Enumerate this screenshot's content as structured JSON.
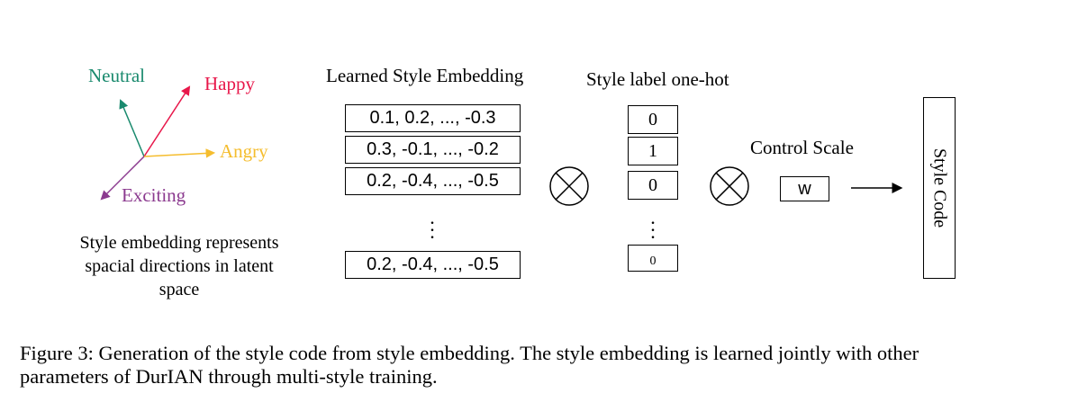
{
  "vectors": {
    "neutral": {
      "label": "Neutral",
      "color": "#1a8a6e"
    },
    "happy": {
      "label": "Happy",
      "color": "#e8174a"
    },
    "angry": {
      "label": "Angry",
      "color": "#f5bd2e"
    },
    "exciting": {
      "label": "Exciting",
      "color": "#8b3a8f"
    }
  },
  "vector_caption": [
    "Style embedding represents",
    "spacial directions in latent",
    "space"
  ],
  "embedding": {
    "title": "Learned Style Embedding",
    "rows": [
      "0.1, 0.2, ..., -0.3",
      "0.3, -0.1, ..., -0.2",
      "0.2, -0.4, ..., -0.5"
    ],
    "last_row": "0.2, -0.4, ..., -0.5"
  },
  "onehot": {
    "title": "Style label one-hot",
    "values": [
      "0",
      "1",
      "0"
    ],
    "last_value": "0"
  },
  "control": {
    "title": "Control Scale",
    "value": "w"
  },
  "output": {
    "label": "Style Code"
  },
  "caption": {
    "line1": "Figure 3:  Generation of the style code from style embedding.  The style embedding is learned jointly with other",
    "line2": "parameters of DurIAN through multi-style training."
  }
}
